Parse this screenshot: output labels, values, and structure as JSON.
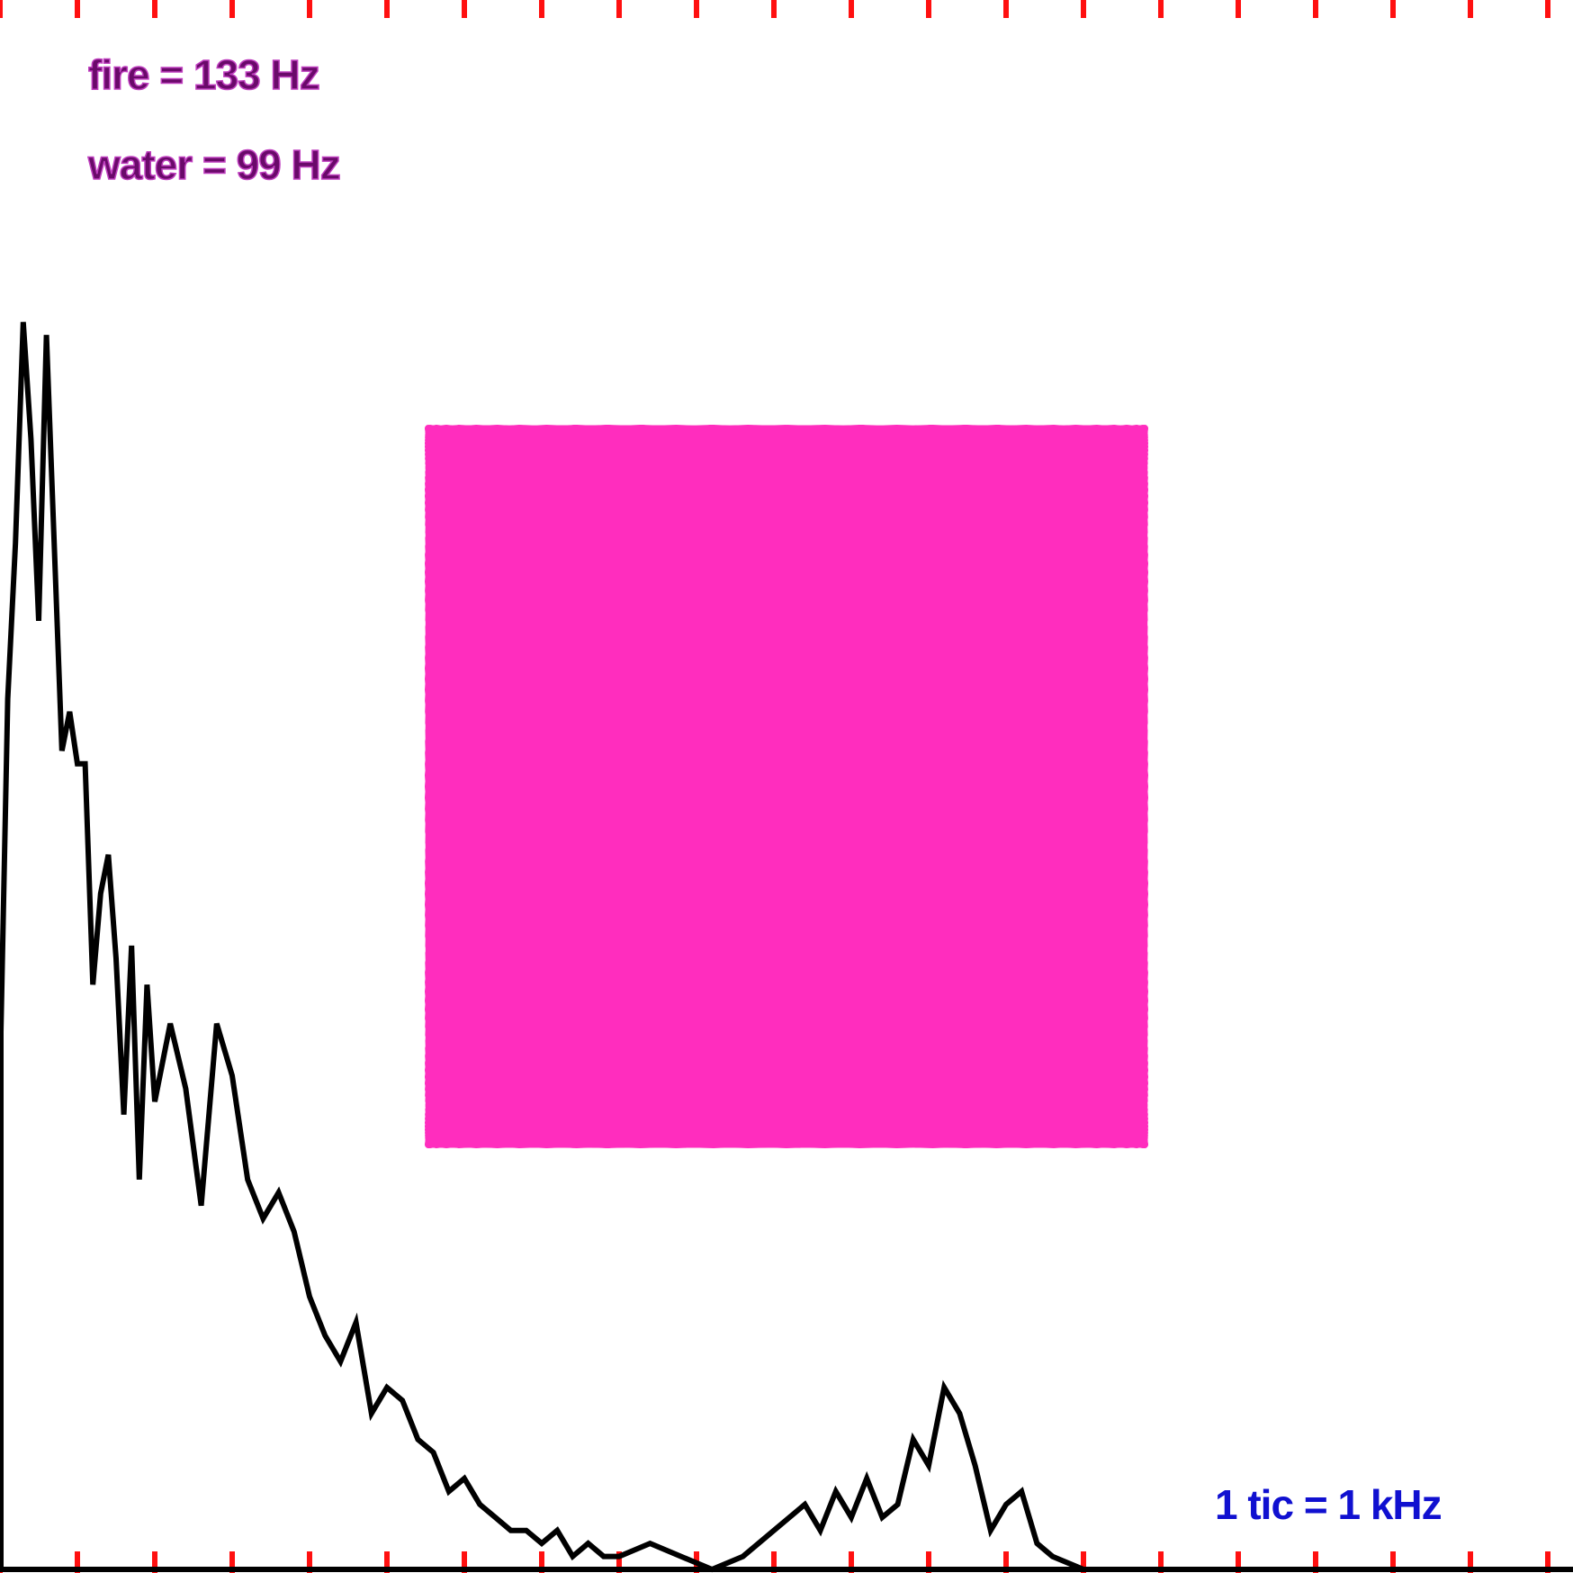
{
  "colors": {
    "background": "#ffffff",
    "tick": "#ff1010",
    "spectrum": "#000000",
    "lissajous": "#ff2dbe",
    "label_text": "#6a0a6a",
    "label_outline": "#c040c0",
    "scale_text": "#1010d0"
  },
  "labels": {
    "fire": "fire = 133 Hz",
    "water": "water = 99 Hz",
    "scale": "1 tic = 1 kHz"
  },
  "chart_data": [
    {
      "type": "line",
      "name": "spectrum",
      "x_unit": "kHz",
      "xlim": [
        0,
        20.2
      ],
      "ylim": [
        0,
        1
      ],
      "grid": false,
      "tick_spacing_khz": 1,
      "x": [
        0.0,
        0.1,
        0.2,
        0.3,
        0.4,
        0.5,
        0.6,
        0.7,
        0.8,
        0.9,
        1.0,
        1.1,
        1.2,
        1.3,
        1.4,
        1.5,
        1.6,
        1.7,
        1.8,
        1.9,
        2.0,
        2.2,
        2.4,
        2.6,
        2.8,
        3.0,
        3.2,
        3.4,
        3.6,
        3.8,
        4.0,
        4.2,
        4.4,
        4.6,
        4.8,
        5.0,
        5.2,
        5.4,
        5.6,
        5.8,
        6.0,
        6.2,
        6.4,
        6.6,
        6.8,
        7.0,
        7.2,
        7.4,
        7.6,
        7.8,
        8.0,
        8.4,
        8.8,
        9.2,
        9.6,
        10.0,
        10.4,
        10.6,
        10.8,
        11.0,
        11.2,
        11.4,
        11.6,
        11.8,
        12.0,
        12.2,
        12.4,
        12.6,
        12.8,
        13.0,
        13.2,
        13.4,
        13.6,
        14.0,
        15.0,
        16.0,
        17.0,
        18.0,
        19.0,
        20.2
      ],
      "y": [
        0.38,
        0.67,
        0.79,
        0.96,
        0.87,
        0.73,
        0.95,
        0.79,
        0.63,
        0.66,
        0.62,
        0.62,
        0.45,
        0.52,
        0.55,
        0.47,
        0.35,
        0.48,
        0.3,
        0.45,
        0.36,
        0.42,
        0.37,
        0.28,
        0.42,
        0.38,
        0.3,
        0.27,
        0.29,
        0.26,
        0.21,
        0.18,
        0.16,
        0.19,
        0.12,
        0.14,
        0.13,
        0.1,
        0.09,
        0.06,
        0.07,
        0.05,
        0.04,
        0.03,
        0.03,
        0.02,
        0.03,
        0.01,
        0.02,
        0.01,
        0.01,
        0.02,
        0.01,
        0.0,
        0.01,
        0.03,
        0.05,
        0.03,
        0.06,
        0.04,
        0.07,
        0.04,
        0.05,
        0.1,
        0.08,
        0.14,
        0.12,
        0.08,
        0.03,
        0.05,
        0.06,
        0.02,
        0.01,
        0.0,
        0.0,
        0.0,
        0.0,
        0.0,
        0.0,
        0.0
      ]
    },
    {
      "type": "scatter",
      "name": "lissajous",
      "fire_hz": 133,
      "water_hz": 99,
      "x_amplitude": 1,
      "y_amplitude": 1
    }
  ]
}
